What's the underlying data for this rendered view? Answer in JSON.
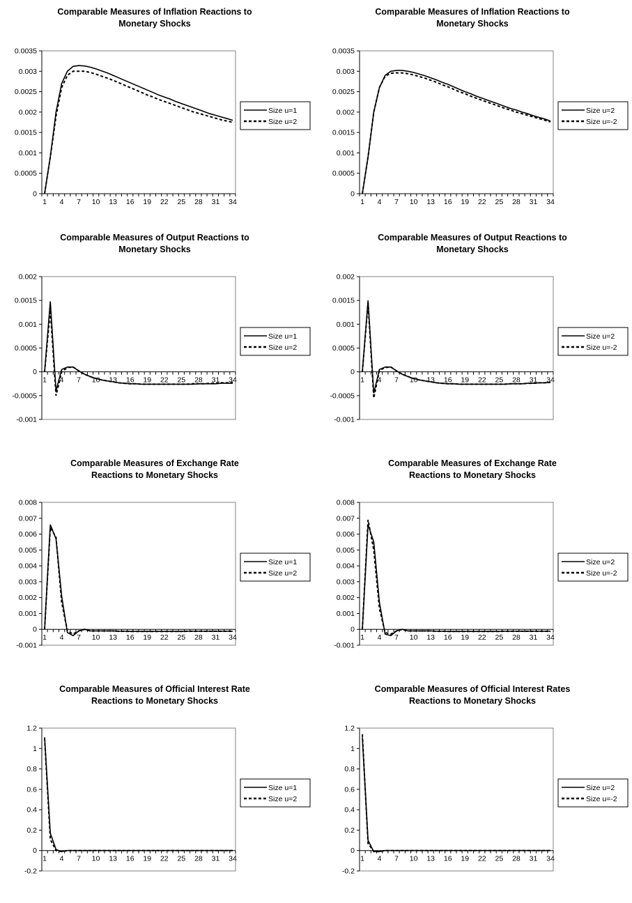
{
  "chart_data": [
    {
      "type": "line",
      "title": [
        "Comparable Measures of Inflation Reactions to",
        "Monetary Shocks"
      ],
      "ylim": [
        0,
        0.0035
      ],
      "yticks": [
        "0.0035",
        "0.003",
        "0.0025",
        "0.002",
        "0.0015",
        "0.001",
        "0.0005",
        "0"
      ],
      "yvals": [
        0.0035,
        0.003,
        0.0025,
        0.002,
        0.0015,
        0.001,
        0.0005,
        0
      ],
      "xticks": [
        "1",
        "4",
        "7",
        "10",
        "13",
        "16",
        "19",
        "22",
        "25",
        "28",
        "31",
        "34"
      ],
      "legend": "right",
      "series": [
        {
          "name": "Size u=1",
          "style": "solid",
          "y": [
            0,
            0.0009,
            0.002,
            0.0027,
            0.003,
            0.00312,
            0.00314,
            0.00313,
            0.0031,
            0.00306,
            0.00301,
            0.00296,
            0.0029,
            0.00284,
            0.00278,
            0.00272,
            0.00266,
            0.0026,
            0.00254,
            0.00248,
            0.00242,
            0.00237,
            0.00232,
            0.00226,
            0.00221,
            0.00216,
            0.00211,
            0.00206,
            0.00201,
            0.00196,
            0.00192,
            0.00188,
            0.00184,
            0.0018
          ]
        },
        {
          "name": "Size u=2",
          "style": "dashed",
          "y": [
            0,
            0.0009,
            0.0019,
            0.0026,
            0.0029,
            0.003,
            0.003,
            0.003,
            0.00297,
            0.00293,
            0.00288,
            0.00283,
            0.00278,
            0.00272,
            0.00266,
            0.0026,
            0.00254,
            0.00248,
            0.00242,
            0.00237,
            0.00231,
            0.00226,
            0.00221,
            0.00216,
            0.00211,
            0.00206,
            0.00201,
            0.00197,
            0.00193,
            0.00189,
            0.00185,
            0.00181,
            0.00178,
            0.00175
          ]
        }
      ]
    },
    {
      "type": "line",
      "title": [
        "Comparable Measures of Inflation Reactions to",
        "Monetary Shocks"
      ],
      "ylim": [
        0,
        0.0035
      ],
      "yticks": [
        "0.0035",
        "0.003",
        "0.0025",
        "0.002",
        "0.0015",
        "0.001",
        "0.0005",
        "0"
      ],
      "yvals": [
        0.0035,
        0.003,
        0.0025,
        0.002,
        0.0015,
        0.001,
        0.0005,
        0
      ],
      "xticks": [
        "1",
        "4",
        "7",
        "10",
        "13",
        "16",
        "19",
        "22",
        "25",
        "28",
        "31",
        "34"
      ],
      "legend": "right",
      "series": [
        {
          "name": "Size u=2",
          "style": "solid",
          "y": [
            0,
            0.0009,
            0.002,
            0.0026,
            0.0029,
            0.003,
            0.00302,
            0.00302,
            0.003,
            0.00297,
            0.00293,
            0.00289,
            0.00284,
            0.00279,
            0.00273,
            0.00268,
            0.00262,
            0.00256,
            0.0025,
            0.00245,
            0.00239,
            0.00234,
            0.00229,
            0.00224,
            0.00219,
            0.00214,
            0.00209,
            0.00205,
            0.002,
            0.00196,
            0.00191,
            0.00187,
            0.00183,
            0.00178
          ]
        },
        {
          "name": "Size u=-2",
          "style": "dashed",
          "y": [
            0,
            0.0009,
            0.002,
            0.0026,
            0.00288,
            0.00295,
            0.00296,
            0.00296,
            0.00294,
            0.00291,
            0.00287,
            0.00283,
            0.00278,
            0.00273,
            0.00267,
            0.00262,
            0.00256,
            0.0025,
            0.00245,
            0.00239,
            0.00234,
            0.00229,
            0.00224,
            0.00219,
            0.00214,
            0.00209,
            0.00205,
            0.002,
            0.00196,
            0.00192,
            0.00188,
            0.00184,
            0.0018,
            0.00176
          ]
        }
      ]
    },
    {
      "type": "line",
      "title": [
        "Comparable Measures of Output Reactions to",
        "Monetary Shocks"
      ],
      "ylim": [
        -0.001,
        0.002
      ],
      "yticks": [
        "0.002",
        "0.0015",
        "0.001",
        "0.0005",
        "0",
        "-0.0005",
        "-0.001"
      ],
      "yvals": [
        0.002,
        0.0015,
        0.001,
        0.0005,
        0,
        -0.0005,
        -0.001
      ],
      "xticks": [
        "1",
        "4",
        "7",
        "10",
        "13",
        "16",
        "19",
        "22",
        "25",
        "28",
        "31",
        "34"
      ],
      "legend": "right",
      "series": [
        {
          "name": "Size u=1",
          "style": "solid",
          "y": [
            0,
            0.00148,
            -0.0004,
            5e-05,
            0.0001,
            0.0001,
            2e-05,
            -5e-05,
            -0.0001,
            -0.00014,
            -0.00017,
            -0.00019,
            -0.00021,
            -0.00023,
            -0.00024,
            -0.00025,
            -0.00025,
            -0.00026,
            -0.00026,
            -0.00026,
            -0.00026,
            -0.00026,
            -0.00026,
            -0.00026,
            -0.00026,
            -0.00026,
            -0.00026,
            -0.00025,
            -0.00025,
            -0.00025,
            -0.00025,
            -0.00024,
            -0.00024,
            -0.00024
          ]
        },
        {
          "name": "Size u=2",
          "style": "dashed",
          "y": [
            0,
            0.0013,
            -0.0005,
            0.0,
            9e-05,
            0.0001,
            2e-05,
            -5e-05,
            -0.0001,
            -0.00014,
            -0.00017,
            -0.00019,
            -0.00021,
            -0.00023,
            -0.00024,
            -0.00025,
            -0.00025,
            -0.00026,
            -0.00026,
            -0.00026,
            -0.00026,
            -0.00026,
            -0.00026,
            -0.00026,
            -0.00026,
            -0.00026,
            -0.00025,
            -0.00025,
            -0.00025,
            -0.00024,
            -0.00024,
            -0.00023,
            -0.00023,
            -0.00022
          ]
        }
      ]
    },
    {
      "type": "line",
      "title": [
        "Comparable Measures of Output Reactions to",
        "Monetary Shocks"
      ],
      "ylim": [
        -0.001,
        0.002
      ],
      "yticks": [
        "0.002",
        "0.0015",
        "0.001",
        "0.0005",
        "0",
        "-0.0005",
        "-0.001"
      ],
      "yvals": [
        0.002,
        0.0015,
        0.001,
        0.0005,
        0,
        -0.0005,
        -0.001
      ],
      "xticks": [
        "1",
        "4",
        "7",
        "10",
        "13",
        "16",
        "19",
        "22",
        "25",
        "28",
        "31",
        "34"
      ],
      "legend": "right",
      "series": [
        {
          "name": "Size u=2",
          "style": "solid",
          "y": [
            0,
            0.0015,
            -0.00045,
            5e-05,
            0.0001,
            0.0001,
            2e-05,
            -5e-05,
            -0.0001,
            -0.00014,
            -0.00017,
            -0.00019,
            -0.00021,
            -0.00023,
            -0.00024,
            -0.00025,
            -0.00025,
            -0.00026,
            -0.00026,
            -0.00026,
            -0.00026,
            -0.00026,
            -0.00026,
            -0.00026,
            -0.00026,
            -0.00026,
            -0.00025,
            -0.00025,
            -0.00025,
            -0.00024,
            -0.00024,
            -0.00023,
            -0.00023,
            -0.00022
          ]
        },
        {
          "name": "Size u=-2",
          "style": "dashed",
          "y": [
            0,
            0.00145,
            -0.00055,
            3e-05,
            9e-05,
            0.0001,
            2e-05,
            -5e-05,
            -0.0001,
            -0.00014,
            -0.00017,
            -0.00019,
            -0.00021,
            -0.00023,
            -0.00024,
            -0.00025,
            -0.00025,
            -0.00026,
            -0.00026,
            -0.00026,
            -0.00026,
            -0.00026,
            -0.00026,
            -0.00026,
            -0.00026,
            -0.00026,
            -0.00025,
            -0.00025,
            -0.00025,
            -0.00024,
            -0.00024,
            -0.00023,
            -0.00023,
            -0.00022
          ]
        }
      ]
    },
    {
      "type": "line",
      "title": [
        "Comparable Measures of Exchange Rate",
        "Reactions to Monetary Shocks"
      ],
      "ylim": [
        -0.001,
        0.008
      ],
      "yticks": [
        "0.008",
        "0.007",
        "0.006",
        "0.005",
        "0.004",
        "0.003",
        "0.002",
        "0.001",
        "0",
        "-0.001"
      ],
      "yvals": [
        0.008,
        0.007,
        0.006,
        0.005,
        0.004,
        0.003,
        0.002,
        0.001,
        0,
        -0.001
      ],
      "xticks": [
        "1",
        "4",
        "7",
        "10",
        "13",
        "16",
        "19",
        "22",
        "25",
        "28",
        "31",
        "34"
      ],
      "legend": "right",
      "series": [
        {
          "name": "Size u=1",
          "style": "solid",
          "y": [
            0,
            0.0066,
            0.0057,
            0.0021,
            -0.0002,
            -0.0004,
            -0.0001,
            0.0,
            -0.0001,
            -0.0001,
            -0.0001,
            -0.0001,
            -0.0001,
            -0.00012,
            -0.00012,
            -0.00013,
            -0.00013,
            -0.00013,
            -0.00013,
            -0.00013,
            -0.00013,
            -0.00013,
            -0.00013,
            -0.00013,
            -0.00013,
            -0.00012,
            -0.00012,
            -0.00012,
            -0.00012,
            -0.00012,
            -0.00012,
            -0.00012,
            -0.00012,
            -0.00012
          ]
        },
        {
          "name": "Size u=2",
          "style": "dashed",
          "y": [
            0,
            0.0064,
            0.0058,
            0.0017,
            -0.0001,
            -0.0003,
            -0.0001,
            0.0,
            -0.0001,
            -0.0001,
            -0.0001,
            -0.0001,
            -0.0001,
            -0.00012,
            -0.00012,
            -0.00013,
            -0.00013,
            -0.00013,
            -0.00013,
            -0.00013,
            -0.00013,
            -0.00013,
            -0.00013,
            -0.00013,
            -0.00013,
            -0.00012,
            -0.00012,
            -0.00012,
            -0.00012,
            -0.00012,
            -0.00012,
            -0.00012,
            -0.00012,
            -0.00012
          ]
        }
      ]
    },
    {
      "type": "line",
      "title": [
        "Comparable Measures of Exchange Rate",
        "Reactions to Monetary Shocks"
      ],
      "ylim": [
        -0.001,
        0.008
      ],
      "yticks": [
        "0.008",
        "0.007",
        "0.006",
        "0.005",
        "0.004",
        "0.003",
        "0.002",
        "0.001",
        "0",
        "-0.001"
      ],
      "yvals": [
        0.008,
        0.007,
        0.006,
        0.005,
        0.004,
        0.003,
        0.002,
        0.001,
        0,
        -0.001
      ],
      "xticks": [
        "1",
        "4",
        "7",
        "10",
        "13",
        "16",
        "19",
        "22",
        "25",
        "28",
        "31",
        "34"
      ],
      "legend": "right",
      "series": [
        {
          "name": "Size u=2",
          "style": "solid",
          "y": [
            0,
            0.0066,
            0.0055,
            0.0017,
            -0.0003,
            -0.0004,
            -0.0001,
            0.0,
            -0.0001,
            -0.0001,
            -0.0001,
            -0.0001,
            -0.0001,
            -0.00012,
            -0.00012,
            -0.00013,
            -0.00013,
            -0.00013,
            -0.00013,
            -0.00013,
            -0.00013,
            -0.00013,
            -0.00013,
            -0.00013,
            -0.00013,
            -0.00012,
            -0.00012,
            -0.00012,
            -0.00012,
            -0.00012,
            -0.00012,
            -0.00012,
            -0.00012,
            -0.00012
          ]
        },
        {
          "name": "Size u=-2",
          "style": "dashed",
          "y": [
            0,
            0.0069,
            0.005,
            0.0013,
            -0.0002,
            -0.0003,
            -0.0001,
            0.0,
            -0.0001,
            -0.0001,
            -0.0001,
            -0.0001,
            -0.0001,
            -0.00012,
            -0.00012,
            -0.00013,
            -0.00013,
            -0.00013,
            -0.00013,
            -0.00013,
            -0.00013,
            -0.00013,
            -0.00013,
            -0.00013,
            -0.00013,
            -0.00012,
            -0.00012,
            -0.00012,
            -0.00012,
            -0.00012,
            -0.00012,
            -0.00012,
            -0.00012,
            -0.00012
          ]
        }
      ]
    },
    {
      "type": "line",
      "title": [
        "Comparable Measures of Official Interest Rate",
        "Reactions to Monetary Shocks"
      ],
      "ylim": [
        -0.2,
        1.2
      ],
      "yticks": [
        "1.2",
        "1",
        "0.8",
        "0.6",
        "0.4",
        "0.2",
        "0",
        "-0.2"
      ],
      "yvals": [
        1.2,
        1,
        0.8,
        0.6,
        0.4,
        0.2,
        0,
        -0.2
      ],
      "xticks": [
        "1",
        "4",
        "7",
        "10",
        "13",
        "16",
        "19",
        "22",
        "25",
        "28",
        "31",
        "34"
      ],
      "legend": "right",
      "series": [
        {
          "name": "Size u=1",
          "style": "solid",
          "y": [
            1.11,
            0.17,
            0.01,
            -0.01,
            0.0,
            0.0,
            0.0,
            0.0,
            0.0,
            0.0,
            0.0,
            0.0,
            0.0,
            0.0,
            0.0,
            0.0,
            0.0,
            0.0,
            0.0,
            0.0,
            0.0,
            0.0,
            0.0,
            0.0,
            0.0,
            0.0,
            0.0,
            0.0,
            0.0,
            0.0,
            0.0,
            0.0,
            0.0,
            0.0
          ]
        },
        {
          "name": "Size u=2",
          "style": "dashed",
          "y": [
            1.1,
            0.11,
            0.0,
            -0.01,
            0.0,
            0.0,
            0.0,
            0.0,
            0.0,
            0.0,
            0.0,
            0.0,
            0.0,
            0.0,
            0.0,
            0.0,
            0.0,
            0.0,
            0.0,
            0.0,
            0.0,
            0.0,
            0.0,
            0.0,
            0.0,
            0.0,
            0.0,
            0.0,
            0.0,
            0.0,
            0.0,
            0.0,
            0.0,
            0.0
          ]
        }
      ]
    },
    {
      "type": "line",
      "title": [
        "Comparable Measures of Official Interest Rates",
        "Reactions to Monetary Shocks"
      ],
      "ylim": [
        -0.2,
        1.2
      ],
      "yticks": [
        "1.2",
        "1",
        "0.8",
        "0.6",
        "0.4",
        "0.2",
        "0",
        "-0.2"
      ],
      "yvals": [
        1.2,
        1,
        0.8,
        0.6,
        0.4,
        0.2,
        0,
        -0.2
      ],
      "xticks": [
        "1",
        "4",
        "7",
        "10",
        "13",
        "16",
        "19",
        "22",
        "25",
        "28",
        "31",
        "34"
      ],
      "legend": "right",
      "series": [
        {
          "name": "Size u=2",
          "style": "solid",
          "y": [
            1.11,
            0.1,
            -0.01,
            -0.01,
            0.0,
            0.0,
            0.0,
            0.0,
            0.0,
            0.0,
            0.0,
            0.0,
            0.0,
            0.0,
            0.0,
            0.0,
            0.0,
            0.0,
            0.0,
            0.0,
            0.0,
            0.0,
            0.0,
            0.0,
            0.0,
            0.0,
            0.0,
            0.0,
            0.0,
            0.0,
            0.0,
            0.0,
            0.0,
            0.0
          ]
        },
        {
          "name": "Size u=-2",
          "style": "dashed",
          "y": [
            1.14,
            0.07,
            -0.01,
            -0.01,
            0.0,
            0.0,
            0.0,
            0.0,
            0.0,
            0.0,
            0.0,
            0.0,
            0.0,
            0.0,
            0.0,
            0.0,
            0.0,
            0.0,
            0.0,
            0.0,
            0.0,
            0.0,
            0.0,
            0.0,
            0.0,
            0.0,
            0.0,
            0.0,
            0.0,
            0.0,
            0.0,
            0.0,
            0.0,
            0.0
          ]
        }
      ]
    }
  ]
}
